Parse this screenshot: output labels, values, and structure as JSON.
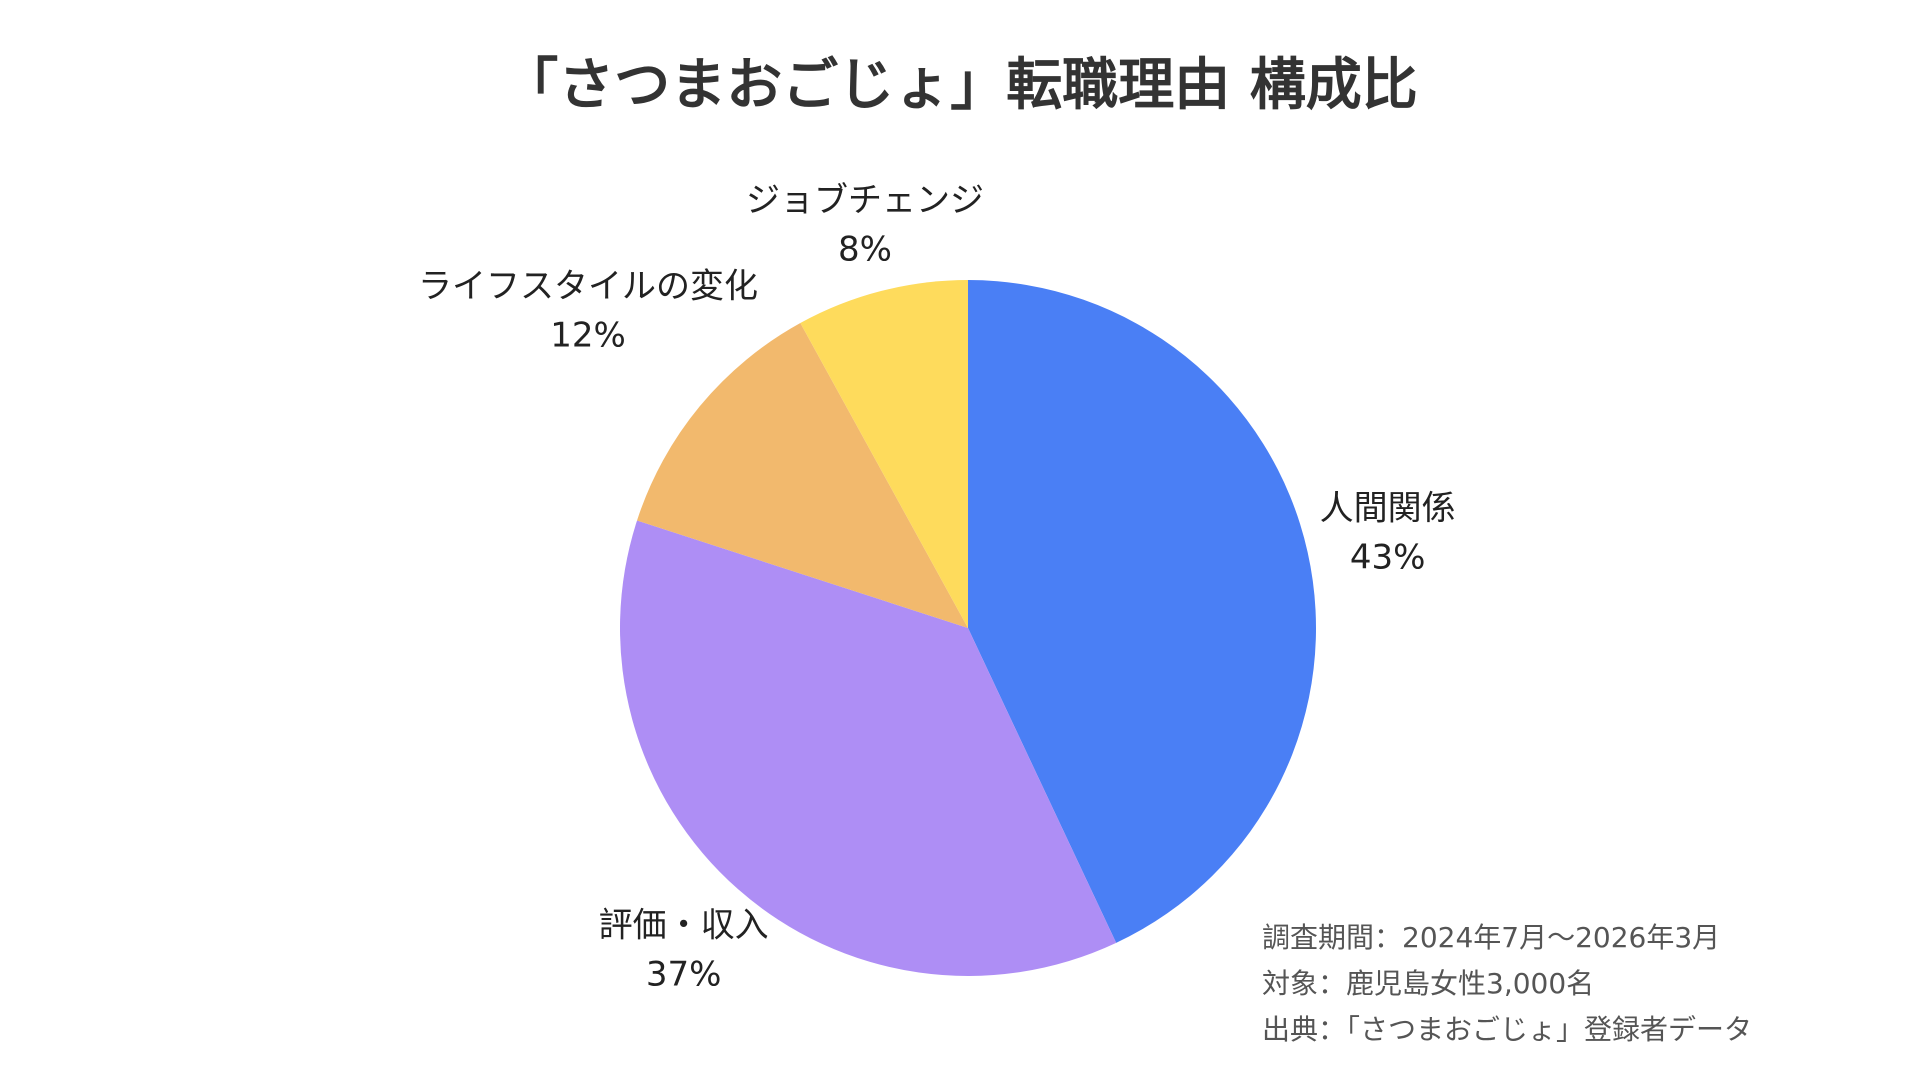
{
  "chart_data": {
    "type": "pie",
    "title": "「さつまおごじょ」転職理由 構成比",
    "slices": [
      {
        "label": "人間関係",
        "value_label": "43%",
        "value": 43,
        "color": "#4a7ff5"
      },
      {
        "label": "評価・収入",
        "value_label": "37%",
        "value": 37,
        "color": "#ae8ef5"
      },
      {
        "label": "ライフスタイルの変化",
        "value_label": "12%",
        "value": 12,
        "color": "#f2b96d"
      },
      {
        "label": "ジョブチェンジ",
        "value_label": "8%",
        "value": 8,
        "color": "#fedb5c"
      }
    ],
    "start": "12 o'clock",
    "direction": "clockwise",
    "legend": "none"
  },
  "notes": [
    "調査期間：2024年7月〜2026年3月",
    "対象：鹿児島女性3,000名",
    "出典：「さつまおごじょ」登録者データ"
  ]
}
